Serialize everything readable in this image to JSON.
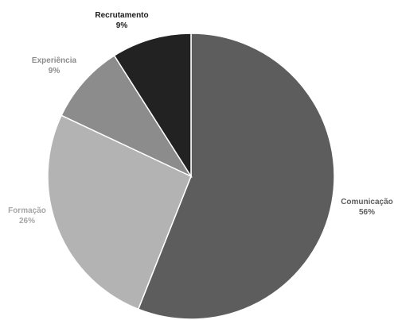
{
  "chart_data": {
    "type": "pie",
    "title": "",
    "slices": [
      {
        "label": "Comunicação",
        "value": 56,
        "value_label": "56%",
        "color": "#5d5d5d",
        "label_color": "#5d5d5d"
      },
      {
        "label": "Formação",
        "value": 26,
        "value_label": "26%",
        "color": "#b3b3b3",
        "label_color": "#a6a6a6"
      },
      {
        "label": "Experiência",
        "value": 9,
        "value_label": "9%",
        "color": "#8c8c8c",
        "label_color": "#8c8c8c"
      },
      {
        "label": "Recrutamento",
        "value": 9,
        "value_label": "9%",
        "color": "#222222",
        "label_color": "#1a1a1a"
      }
    ],
    "start_angle": "12 o'clock",
    "direction": "clockwise",
    "legend": "none",
    "data_labels": "outside, category name and percentage"
  }
}
